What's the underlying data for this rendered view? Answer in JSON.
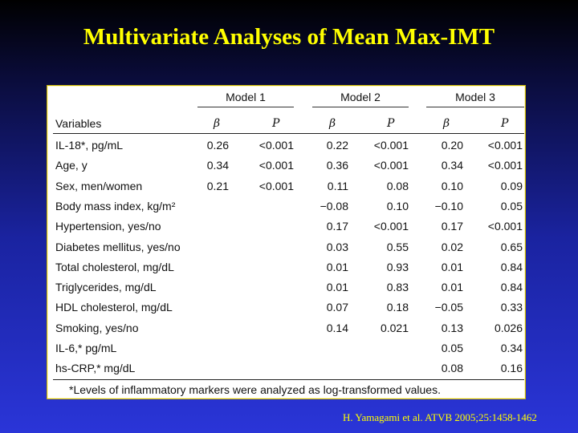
{
  "title": "Multivariate Analyses of Mean Max-IMT",
  "table": {
    "models": [
      "Model 1",
      "Model 2",
      "Model 3"
    ],
    "column_headers": {
      "variables": "Variables",
      "beta": "β",
      "p": "P"
    },
    "rows": [
      {
        "variable": "IL-18*, pg/mL",
        "m1b": "0.26",
        "m1p": "<0.001",
        "m2b": "0.22",
        "m2p": "<0.001",
        "m3b": "0.20",
        "m3p": "<0.001"
      },
      {
        "variable": "Age, y",
        "m1b": "0.34",
        "m1p": "<0.001",
        "m2b": "0.36",
        "m2p": "<0.001",
        "m3b": "0.34",
        "m3p": "<0.001"
      },
      {
        "variable": "Sex, men/women",
        "m1b": "0.21",
        "m1p": "<0.001",
        "m2b": "0.11",
        "m2p": "0.08",
        "m3b": "0.10",
        "m3p": "0.09"
      },
      {
        "variable": "Body mass index, kg/m²",
        "m1b": "",
        "m1p": "",
        "m2b": "−0.08",
        "m2p": "0.10",
        "m3b": "−0.10",
        "m3p": "0.05"
      },
      {
        "variable": "Hypertension, yes/no",
        "m1b": "",
        "m1p": "",
        "m2b": "0.17",
        "m2p": "<0.001",
        "m3b": "0.17",
        "m3p": "<0.001"
      },
      {
        "variable": "Diabetes mellitus, yes/no",
        "m1b": "",
        "m1p": "",
        "m2b": "0.03",
        "m2p": "0.55",
        "m3b": "0.02",
        "m3p": "0.65"
      },
      {
        "variable": "Total cholesterol, mg/dL",
        "m1b": "",
        "m1p": "",
        "m2b": "0.01",
        "m2p": "0.93",
        "m3b": "0.01",
        "m3p": "0.84"
      },
      {
        "variable": "Triglycerides, mg/dL",
        "m1b": "",
        "m1p": "",
        "m2b": "0.01",
        "m2p": "0.83",
        "m3b": "0.01",
        "m3p": "0.84"
      },
      {
        "variable": "HDL cholesterol, mg/dL",
        "m1b": "",
        "m1p": "",
        "m2b": "0.07",
        "m2p": "0.18",
        "m3b": "−0.05",
        "m3p": "0.33"
      },
      {
        "variable": "Smoking, yes/no",
        "m1b": "",
        "m1p": "",
        "m2b": "0.14",
        "m2p": "0.021",
        "m3b": "0.13",
        "m3p": "0.026"
      },
      {
        "variable": "IL-6,* pg/mL",
        "m1b": "",
        "m1p": "",
        "m2b": "",
        "m2p": "",
        "m3b": "0.05",
        "m3p": "0.34"
      },
      {
        "variable": "hs-CRP,* mg/dL",
        "m1b": "",
        "m1p": "",
        "m2b": "",
        "m2p": "",
        "m3b": "0.08",
        "m3p": "0.16"
      }
    ],
    "footnote": "*Levels of inflammatory markers were analyzed as log-transformed values."
  },
  "citation": "H. Yamagami et al. ATVB 2005;25:1458-1462"
}
